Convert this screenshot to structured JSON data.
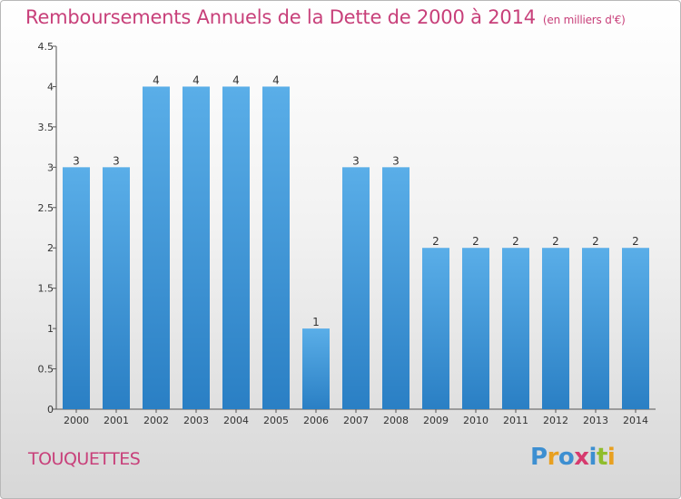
{
  "header": {
    "title": "Remboursements Annuels de la Dette de 2000 à 2014",
    "unit": "(en milliers d'€)"
  },
  "footer": {
    "commune": "TOUQUETTES",
    "brand": "Proxiti",
    "brand_letters": [
      "P",
      "r",
      "o",
      "x",
      "i",
      "t",
      "i"
    ],
    "brand_colors": [
      "#3d8fd1",
      "#e8a020",
      "#3d8fd1",
      "#d63a6e",
      "#3d8fd1",
      "#8fbd2c",
      "#e8a020"
    ]
  },
  "colors": {
    "accent": "#c8407a",
    "bar_top": "#5aaee8",
    "bar_bottom": "#2a7fc4",
    "axis": "#555555"
  },
  "chart_data": {
    "type": "bar",
    "title": "Remboursements Annuels de la Dette de 2000 à 2014",
    "xlabel": "",
    "ylabel": "",
    "ylim": [
      0,
      4.5
    ],
    "yticks": [
      0,
      0.5,
      1,
      1.5,
      2,
      2.5,
      3,
      3.5,
      4,
      4.5
    ],
    "ytick_labels": [
      "0",
      "0.5",
      "1",
      "1.5",
      "2",
      "2.5",
      "3",
      "3.5",
      "4",
      "4.5"
    ],
    "grid": false,
    "categories": [
      "2000",
      "2001",
      "2002",
      "2003",
      "2004",
      "2005",
      "2006",
      "2007",
      "2008",
      "2009",
      "2010",
      "2011",
      "2012",
      "2013",
      "2014"
    ],
    "values": [
      3,
      3,
      4,
      4,
      4,
      4,
      1,
      3,
      3,
      2,
      2,
      2,
      2,
      2,
      2
    ],
    "data_labels": [
      "3",
      "3",
      "4",
      "4",
      "4",
      "4",
      "1",
      "3",
      "3",
      "2",
      "2",
      "2",
      "2",
      "2",
      "2"
    ]
  }
}
